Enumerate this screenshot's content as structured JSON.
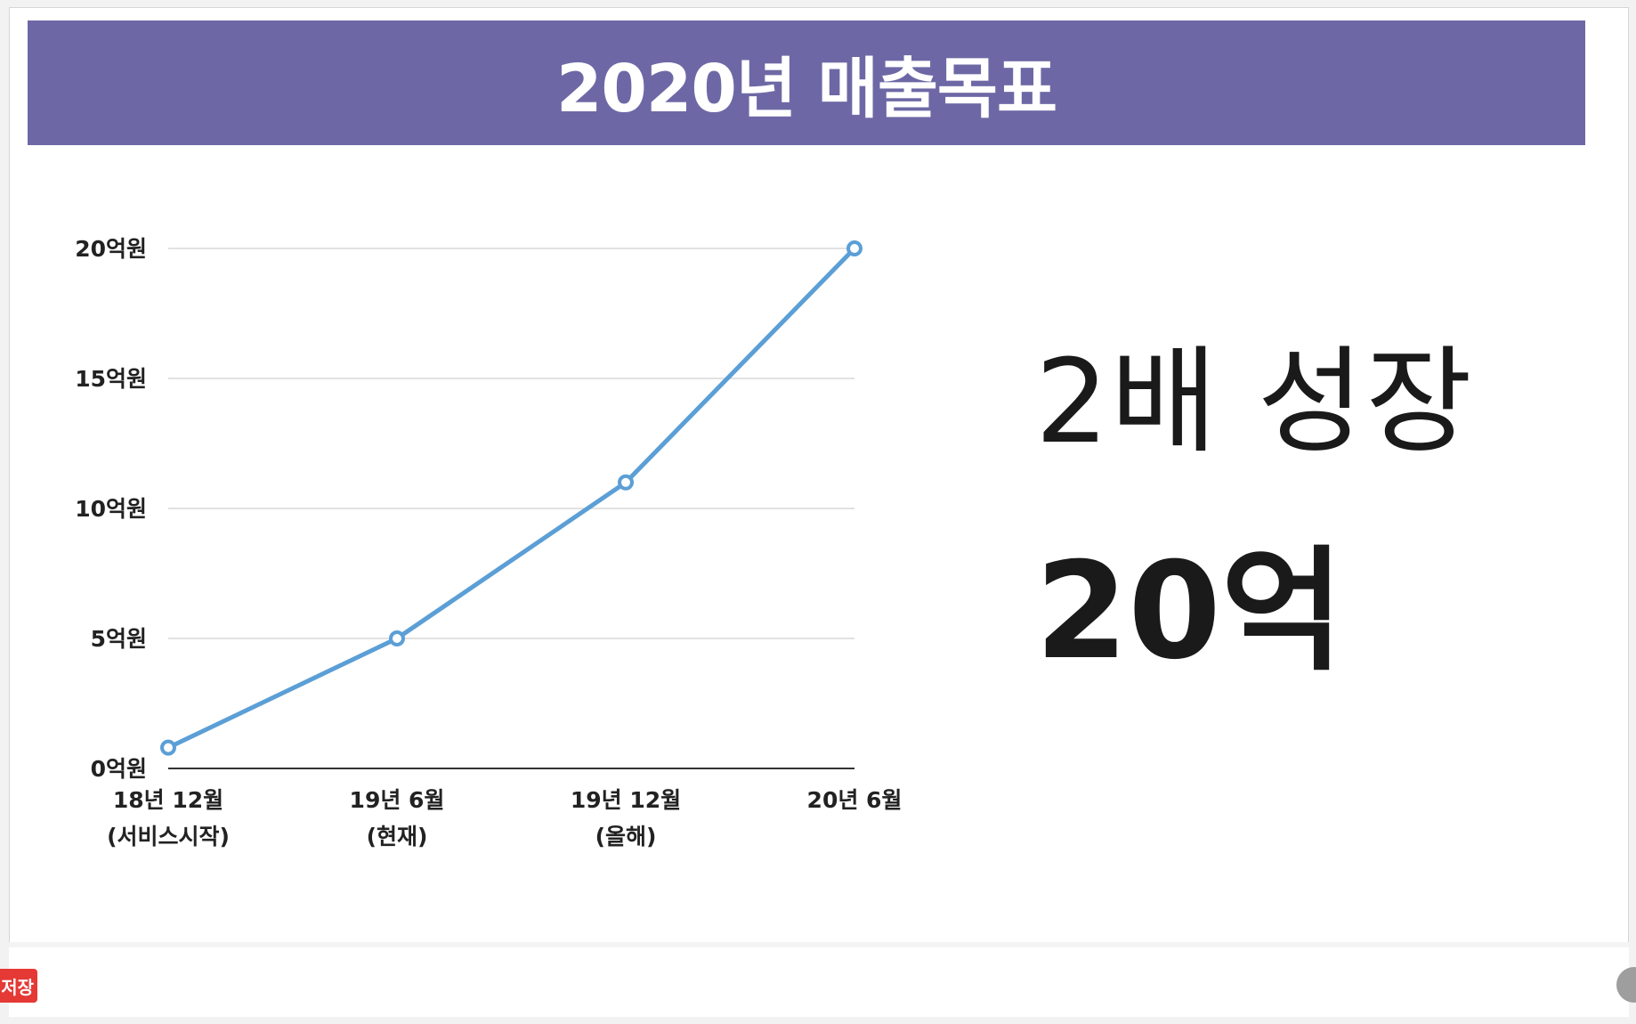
{
  "title": "2020년 매출목표",
  "headline": "2배 성장",
  "big_value": "20억",
  "badge_label": "저장",
  "icons": {
    "bottom_right": "circle-icon"
  },
  "colors": {
    "banner": "#6d68a5",
    "line": "#5b9fd6",
    "grid": "#d9d9d9",
    "axis": "#333333",
    "badge": "#e53935"
  },
  "chart_data": {
    "type": "line",
    "categories": [
      [
        "18년 12월",
        "(서비스시작)"
      ],
      [
        "19년 6월",
        "(현재)"
      ],
      [
        "19년 12월",
        "(올해)"
      ],
      [
        "20년  6월"
      ]
    ],
    "series": [
      {
        "values": [
          0.8,
          5,
          11,
          20
        ]
      }
    ],
    "ylim": [
      0,
      20
    ],
    "yticks": [
      0,
      5,
      10,
      15,
      20
    ],
    "ytick_labels": [
      "0억원",
      "5억원",
      "10억원",
      "15억원",
      "20억원"
    ],
    "grid": true,
    "markers": "hollow-circle"
  }
}
